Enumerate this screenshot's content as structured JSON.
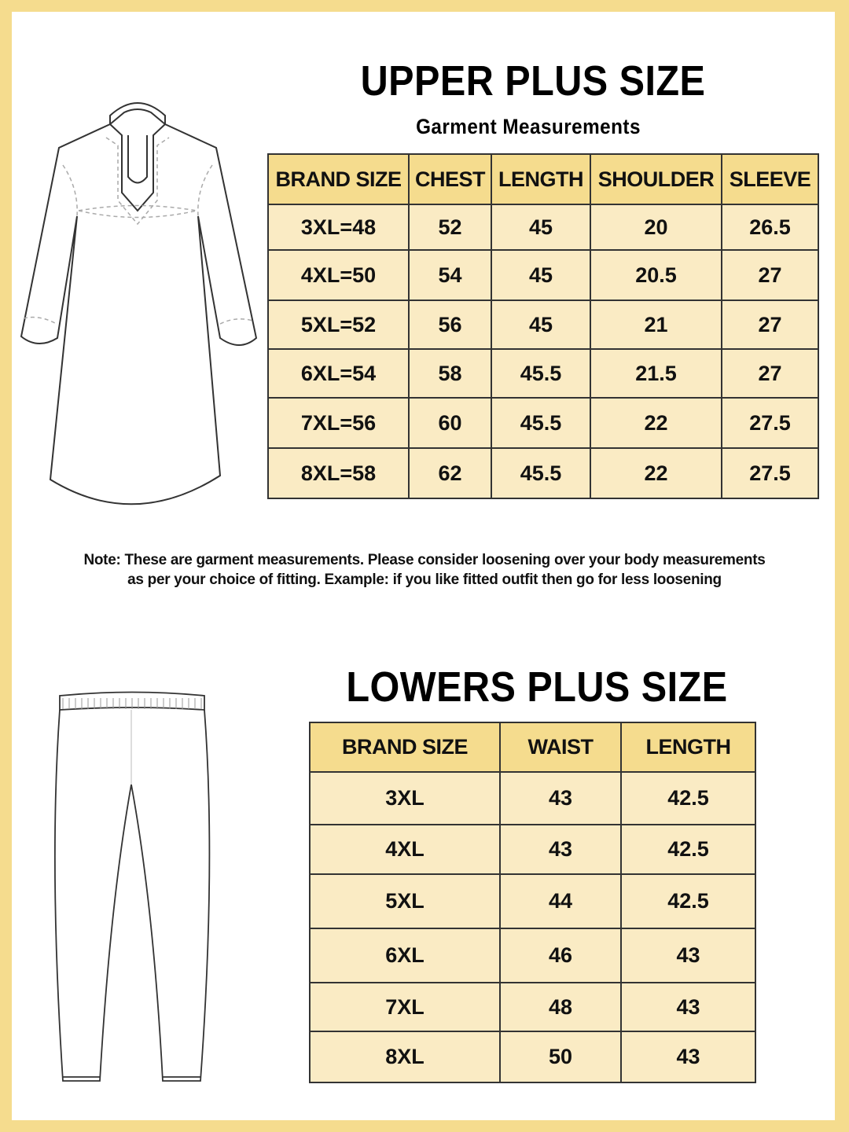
{
  "colors": {
    "frame": "#f5dc8e",
    "header_fill": "#f5dc8e",
    "row_fill": "#faebc4"
  },
  "upper": {
    "title": "UPPER PLUS SIZE",
    "subtitle": "Garment Measurements",
    "illustration": "kurta-illustration",
    "headers": [
      "BRAND SIZE",
      "CHEST",
      "LENGTH",
      "SHOULDER",
      "SLEEVE"
    ],
    "rows": [
      [
        "3XL=48",
        "52",
        "45",
        "20",
        "26.5"
      ],
      [
        "4XL=50",
        "54",
        "45",
        "20.5",
        "27"
      ],
      [
        "5XL=52",
        "56",
        "45",
        "21",
        "27"
      ],
      [
        "6XL=54",
        "58",
        "45.5",
        "21.5",
        "27"
      ],
      [
        "7XL=56",
        "60",
        "45.5",
        "22",
        "27.5"
      ],
      [
        "8XL=58",
        "62",
        "45.5",
        "22",
        "27.5"
      ]
    ]
  },
  "note": {
    "line1": "Note: These are garment measurements. Please consider loosening over your body measurements",
    "line2": "as per your choice of fitting. Example: if you like fitted outfit then go for less loosening"
  },
  "lower": {
    "title": "LOWERS PLUS SIZE",
    "illustration": "pants-illustration",
    "headers": [
      "BRAND SIZE",
      "WAIST",
      "LENGTH"
    ],
    "rows": [
      [
        "3XL",
        "43",
        "42.5"
      ],
      [
        "4XL",
        "43",
        "42.5"
      ],
      [
        "5XL",
        "44",
        "42.5"
      ],
      [
        "6XL",
        "46",
        "43"
      ],
      [
        "7XL",
        "48",
        "43"
      ],
      [
        "8XL",
        "50",
        "43"
      ]
    ]
  }
}
